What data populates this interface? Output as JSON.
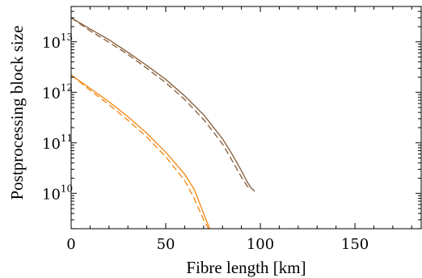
{
  "chart_data": {
    "type": "line",
    "title": "",
    "xlabel": "Fibre length [km]",
    "ylabel": "Postprocessing block size",
    "xlim": [
      0,
      185
    ],
    "ylim_log10": [
      9.3,
      13.7
    ],
    "yscale": "log",
    "grid": false,
    "x_ticks": [
      0,
      50,
      100,
      150
    ],
    "x_tick_labels": [
      "0",
      "50",
      "100",
      "150"
    ],
    "y_ticks": [
      {
        "base": "10",
        "exp": "10",
        "value": 10000000000.0
      },
      {
        "base": "10",
        "exp": "11",
        "value": 100000000000.0
      },
      {
        "base": "10",
        "exp": "12",
        "value": 1000000000000.0
      },
      {
        "base": "10",
        "exp": "13",
        "value": 10000000000000.0
      }
    ],
    "series": [
      {
        "color": "#8B6340",
        "style": "solid",
        "x": [
          0,
          10,
          20,
          30,
          40,
          50,
          60,
          70,
          80,
          85,
          90,
          93,
          95,
          97
        ],
        "y": [
          30000000000000.0,
          18000000000000.0,
          11000000000000.0,
          6200000000000.0,
          3400000000000.0,
          1800000000000.0,
          850000000000.0,
          360000000000.0,
          120000000000.0,
          60000000000.0,
          28000000000.0,
          17000000000.0,
          13000000000.0,
          11000000000.0
        ]
      },
      {
        "color": "#8B6340",
        "style": "dashed",
        "x": [
          0,
          10,
          20,
          30,
          40,
          50,
          60,
          70,
          80,
          85,
          90,
          93,
          95
        ],
        "y": [
          30000000000000.0,
          16500000000000.0,
          9800000000000.0,
          5600000000000.0,
          3000000000000.0,
          1550000000000.0,
          720000000000.0,
          290000000000.0,
          95000000000.0,
          45000000000.0,
          21000000000.0,
          14000000000.0,
          12000000000.0
        ]
      },
      {
        "color": "#F28C1E",
        "style": "solid",
        "x": [
          0,
          10,
          20,
          30,
          40,
          50,
          60,
          65,
          70,
          73,
          75
        ],
        "y": [
          2200000000000.0,
          1200000000000.0,
          650000000000.0,
          330000000000.0,
          155000000000.0,
          65000000000.0,
          24000000000.0,
          12000000000.0,
          4000000000.0,
          2100000000.0,
          1500000000.0
        ]
      },
      {
        "color": "#F28C1E",
        "style": "dashed",
        "x": [
          0,
          10,
          20,
          30,
          40,
          50,
          60,
          65,
          70,
          72,
          74
        ],
        "y": [
          2200000000000.0,
          1100000000000.0,
          570000000000.0,
          280000000000.0,
          130000000000.0,
          53000000000.0,
          18000000000.0,
          8000000000.0,
          3000000000.0,
          2200000000.0,
          1600000000.0
        ]
      }
    ]
  }
}
